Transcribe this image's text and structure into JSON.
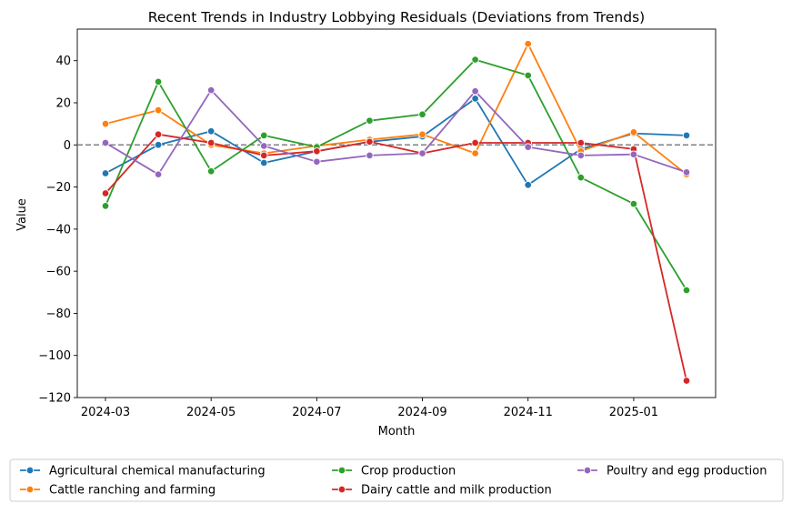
{
  "chart_data": {
    "type": "line",
    "title": "Recent Trends in Industry Lobbying Residuals (Deviations from Trends)",
    "xlabel": "Month",
    "ylabel": "Value",
    "x": [
      "2024-03",
      "2024-04",
      "2024-05",
      "2024-06",
      "2024-07",
      "2024-08",
      "2024-09",
      "2024-10",
      "2024-11",
      "2024-12",
      "2025-01",
      "2025-02"
    ],
    "xticks": [
      "2024-03",
      "2024-05",
      "2024-07",
      "2024-09",
      "2024-11",
      "2025-01"
    ],
    "ylim": [
      -120,
      55
    ],
    "yticks": [
      40,
      20,
      0,
      -20,
      -40,
      -60,
      -80,
      -100,
      -120
    ],
    "reference_line": 0,
    "grid": false,
    "legend_position": "bottom-center",
    "series": [
      {
        "name": "Agricultural chemical manufacturing",
        "color": "#1f77b4",
        "values": [
          -13.5,
          0,
          6.5,
          -8.5,
          -3,
          1.5,
          4,
          22,
          -19,
          -2,
          5.5,
          4.5
        ]
      },
      {
        "name": "Cattle ranching and farming",
        "color": "#ff7f0e",
        "values": [
          10,
          16.5,
          0,
          -4,
          -0.5,
          2.5,
          5,
          -4,
          48,
          -3,
          6,
          -14
        ]
      },
      {
        "name": "Crop production",
        "color": "#2ca02c",
        "values": [
          -29,
          30,
          -12.5,
          4.5,
          -1,
          11.5,
          14.5,
          40.5,
          33,
          -15.5,
          -28,
          -69
        ]
      },
      {
        "name": "Dairy cattle and milk production",
        "color": "#d62728",
        "values": [
          -23,
          5,
          1,
          -5,
          -3,
          1.5,
          -4,
          1,
          1,
          1,
          -2,
          -112
        ]
      },
      {
        "name": "Poultry and egg production",
        "color": "#9467bd",
        "values": [
          1,
          -14,
          26,
          -0.5,
          -8,
          -5,
          -4,
          25.5,
          -1,
          -5,
          -4.5,
          -13
        ]
      }
    ]
  }
}
